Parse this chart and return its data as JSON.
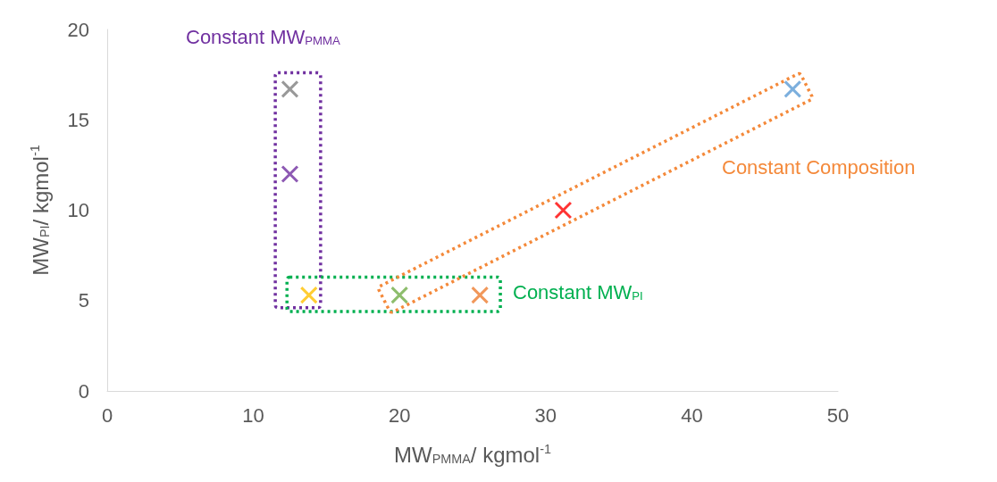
{
  "chart_data": {
    "type": "scatter",
    "marker": "cross",
    "xlabel": "MW$_{PMMA}$/ kgmol$^{-1}$",
    "ylabel": "MW$_{PI}$/ kgmol$^{-1}$",
    "x": [
      12.5,
      12.5,
      13.8,
      20,
      25.5,
      31.2,
      46.9
    ],
    "values": [
      16.7,
      12,
      5.3,
      5.3,
      5.3,
      10,
      16.7
    ],
    "colors": [
      "#7f7f7f",
      "#7030a0",
      "#ffc000",
      "#70ad47",
      "#ed7d31",
      "#ff0000",
      "#5b9bd5"
    ],
    "xlim": [
      0,
      50
    ],
    "xticks": [
      0,
      10,
      20,
      30,
      40,
      50
    ],
    "ylim": [
      0,
      20
    ],
    "yticks": [
      0,
      5,
      10,
      15,
      20
    ],
    "grid": false,
    "annotations": [
      "Constant MW$_{PMMA}$",
      "Constant MW$_{PI}$",
      "Constant Composition"
    ]
  }
}
